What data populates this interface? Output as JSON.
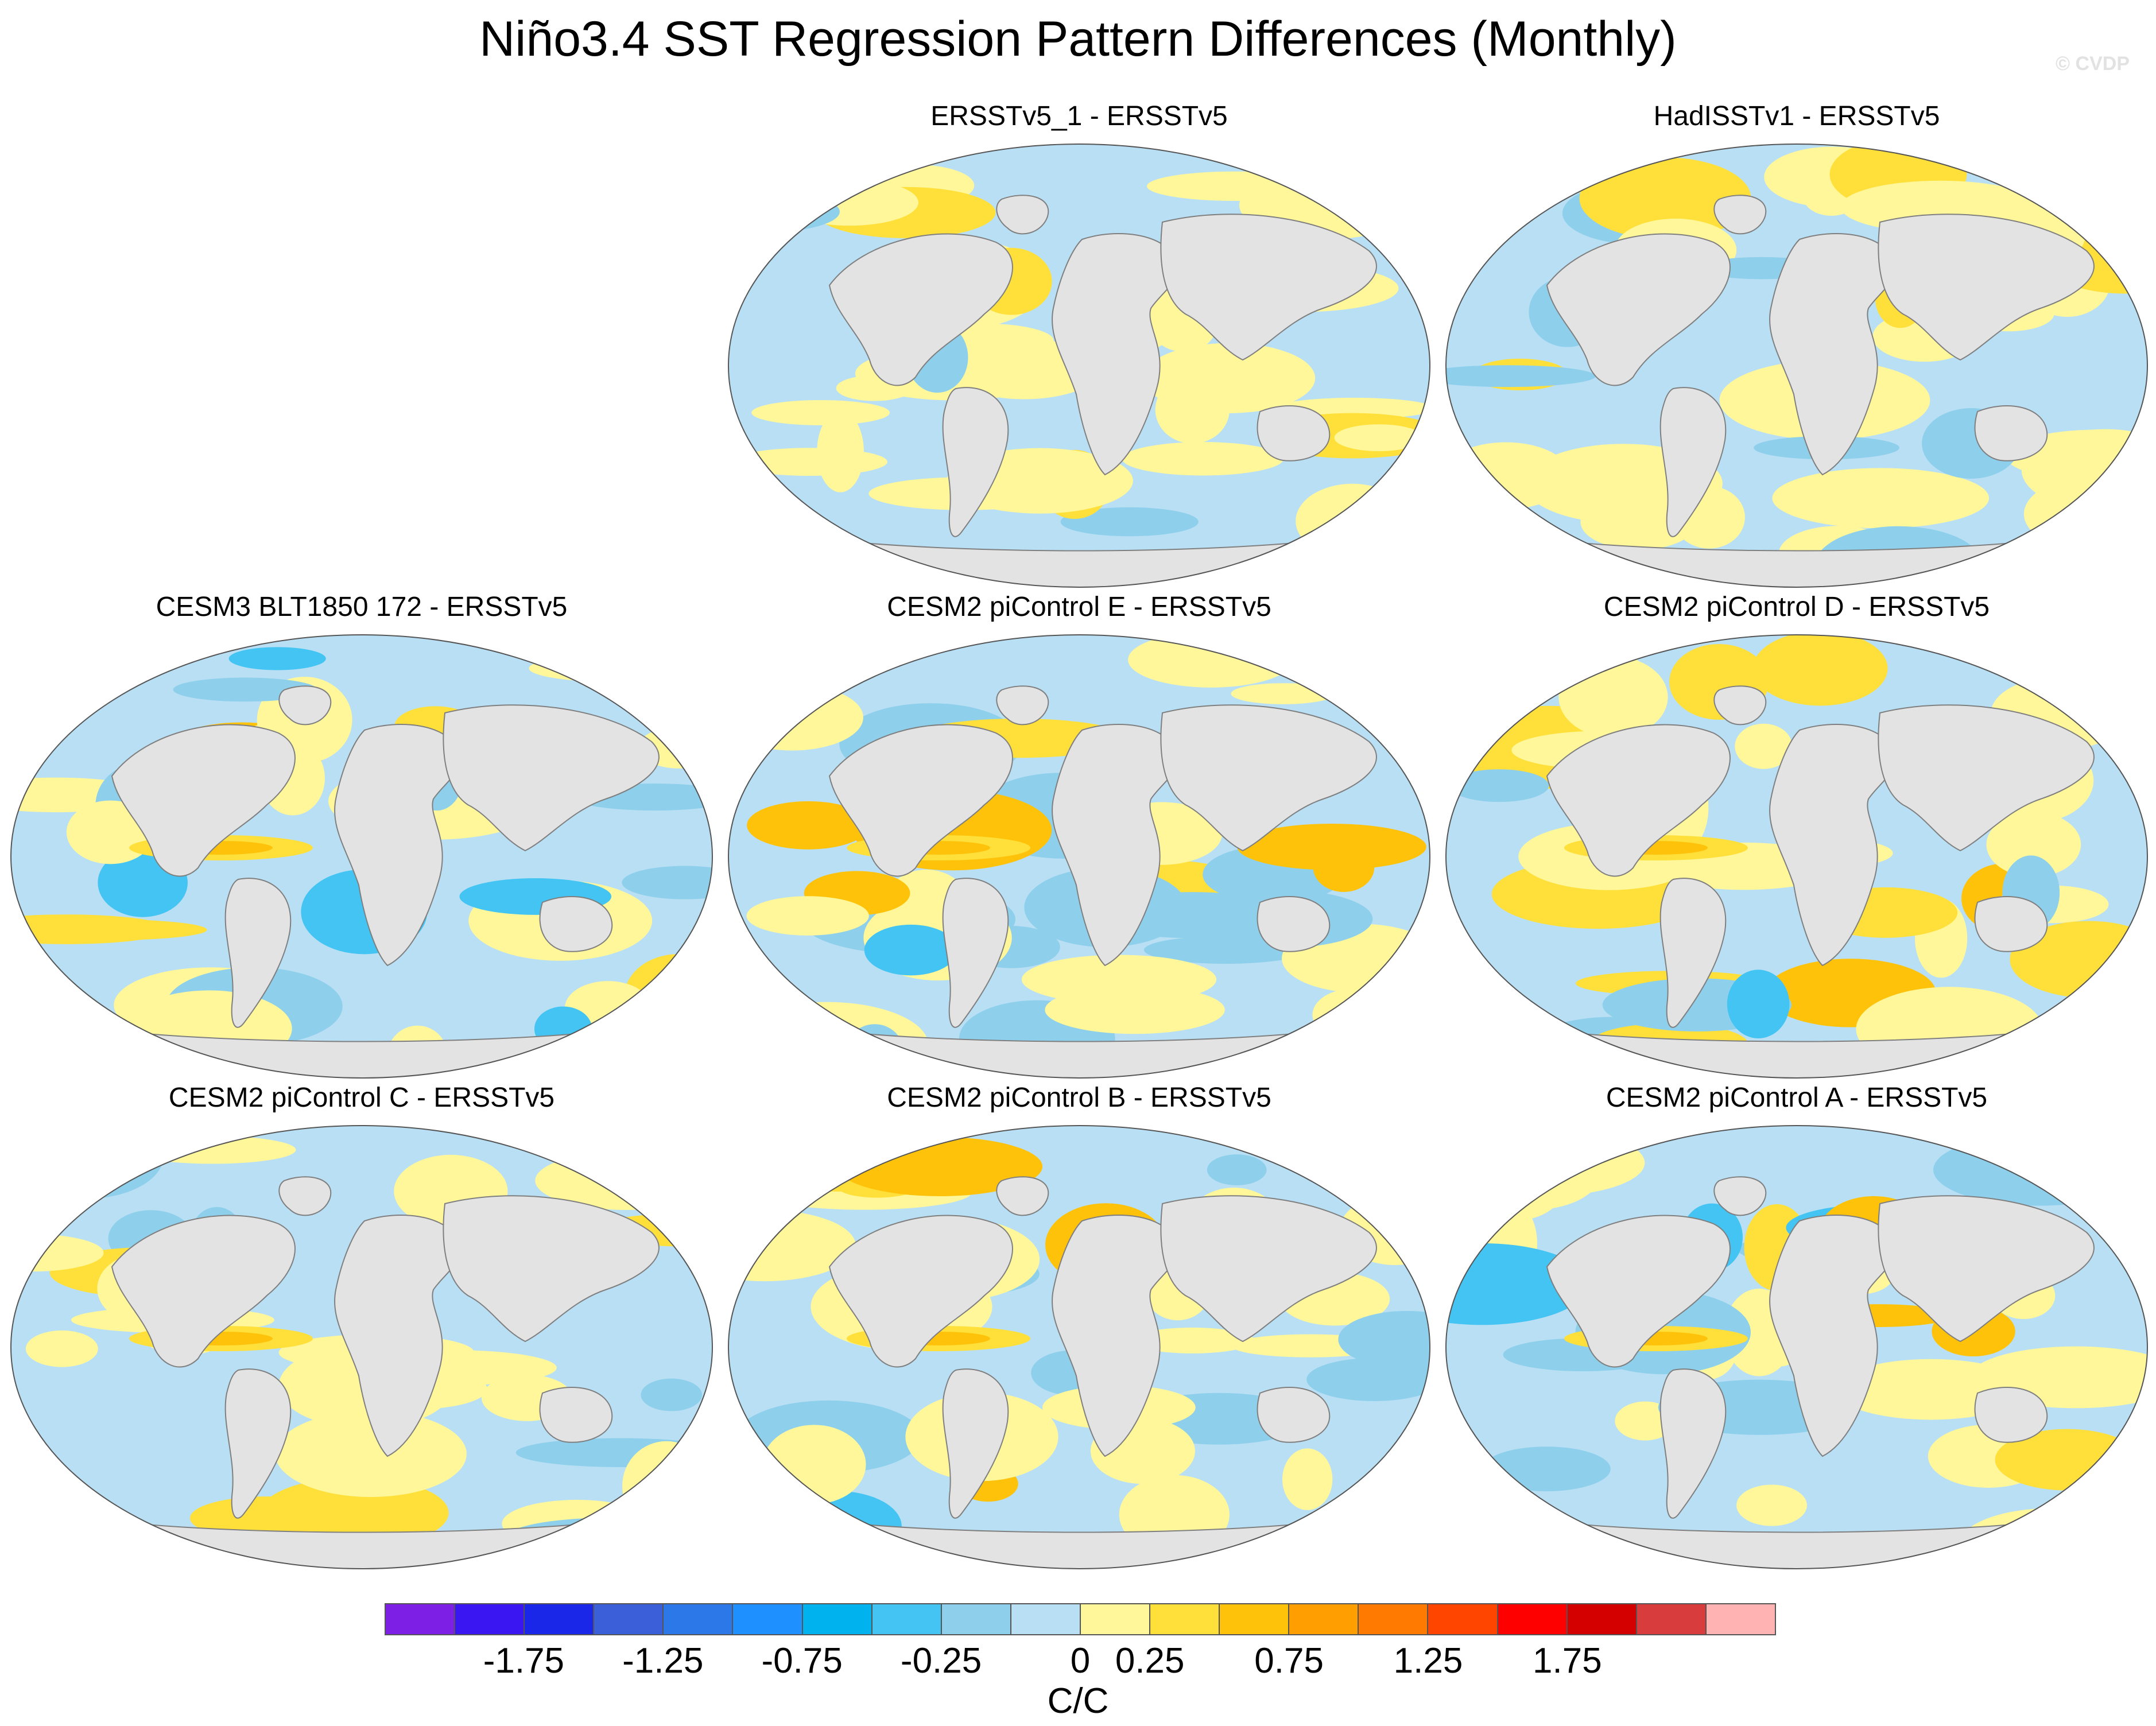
{
  "title": "Niño3.4 SST Regression Pattern Differences (Monthly)",
  "watermark": "© CVDP",
  "panels": [
    {
      "title": "ERSSTv5_1 - ERSSTv5"
    },
    {
      "title": "HadISSTv1 - ERSSTv5"
    },
    {
      "title": "CESM3 BLT1850 172 - ERSSTv5"
    },
    {
      "title": "CESM2 piControl E - ERSSTv5"
    },
    {
      "title": "CESM2 piControl D - ERSSTv5"
    },
    {
      "title": "CESM2 piControl C - ERSSTv5"
    },
    {
      "title": "CESM2 piControl B - ERSSTv5"
    },
    {
      "title": "CESM2 piControl A - ERSSTv5"
    }
  ],
  "colorbar": {
    "colors": [
      "#7e1fe6",
      "#3a17f2",
      "#1a26e8",
      "#3b5fd9",
      "#2c78e8",
      "#1e90ff",
      "#00b2ee",
      "#43c4f2",
      "#8ecfeb",
      "#b9dff4",
      "#fff79a",
      "#ffe03a",
      "#ffc20a",
      "#ff9e00",
      "#ff7a00",
      "#ff4500",
      "#ff0000",
      "#d40000",
      "#d93c3c",
      "#ffb3b3"
    ],
    "labels": [
      "-1.75",
      "-1.25",
      "-0.75",
      "-0.25",
      "0",
      "0.25",
      "0.75",
      "1.25",
      "1.75"
    ],
    "units": "C/C"
  }
}
